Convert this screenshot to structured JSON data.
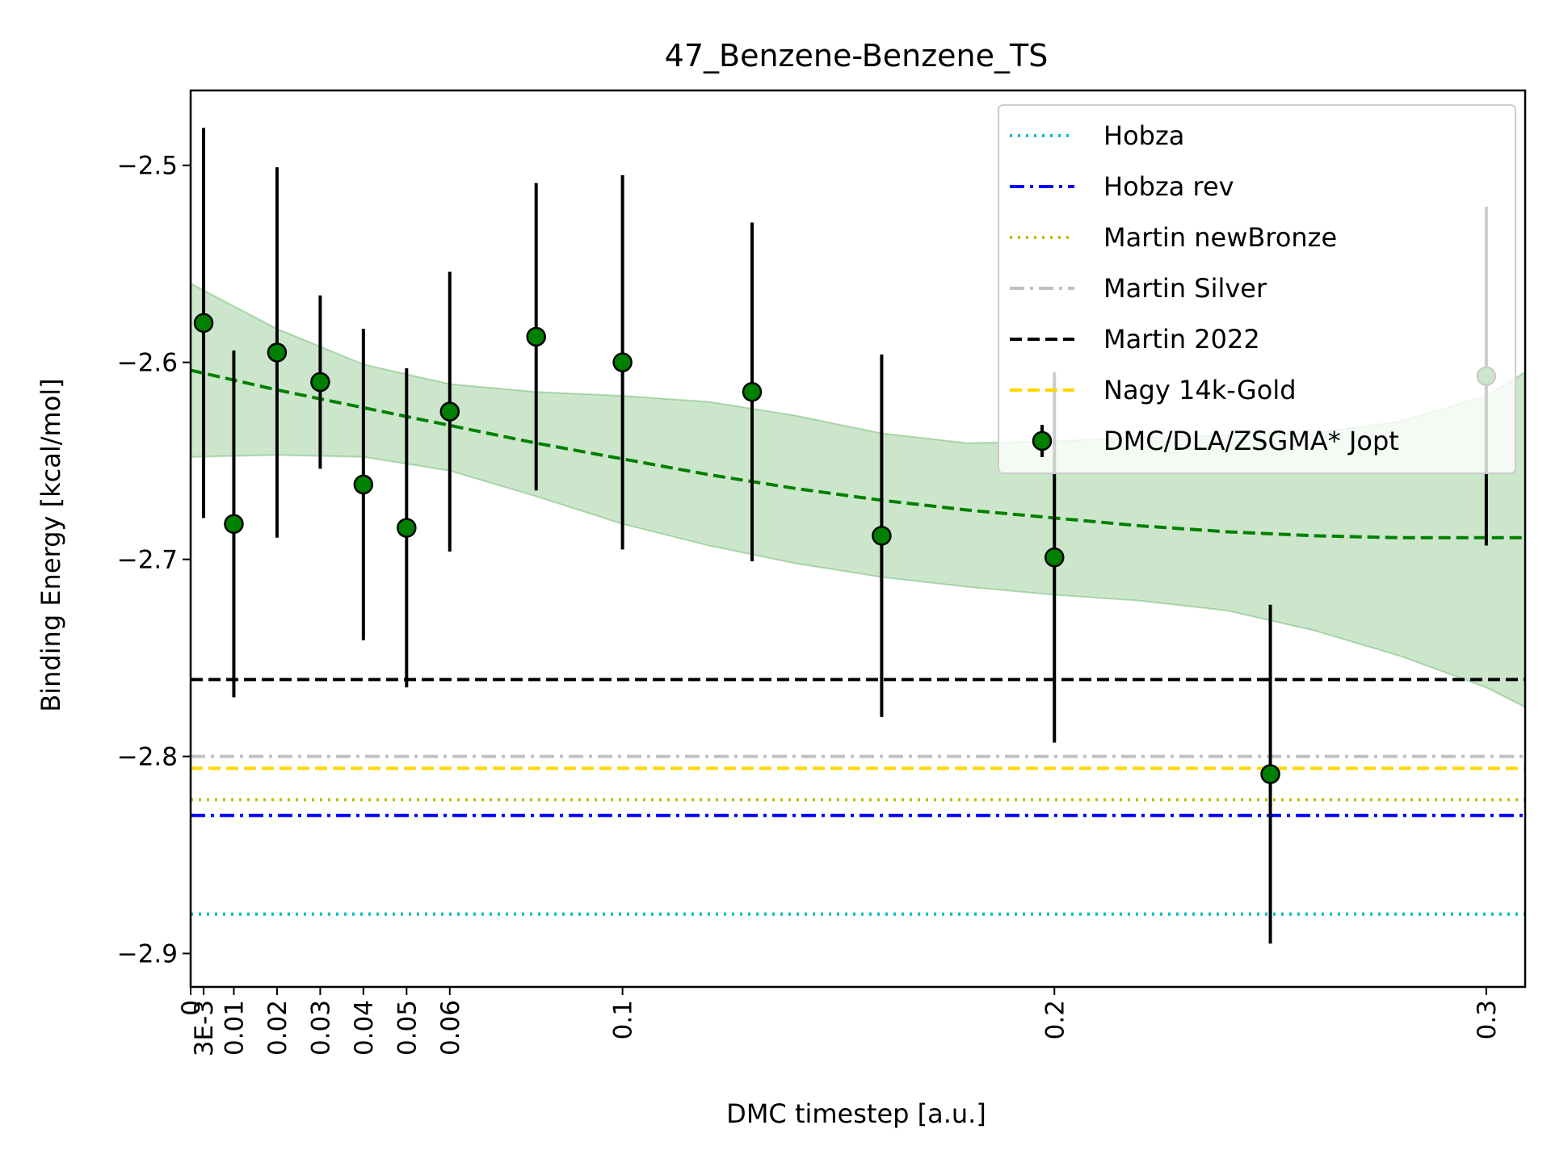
{
  "chart_data": {
    "type": "scatter",
    "title": "47_Benzene-Benzene_TS",
    "xlabel": "DMC timestep [a.u.]",
    "ylabel": "Binding Energy [kcal/mol]",
    "xlim": [
      0,
      0.309
    ],
    "ylim": [
      -2.917,
      -2.462
    ],
    "x_ticks": [
      {
        "value": 0,
        "label": "0"
      },
      {
        "value": 0.003,
        "label": "3E-3"
      },
      {
        "value": 0.01,
        "label": "0.01"
      },
      {
        "value": 0.02,
        "label": "0.02"
      },
      {
        "value": 0.03,
        "label": "0.03"
      },
      {
        "value": 0.04,
        "label": "0.04"
      },
      {
        "value": 0.05,
        "label": "0.05"
      },
      {
        "value": 0.06,
        "label": "0.06"
      },
      {
        "value": 0.1,
        "label": "0.1"
      },
      {
        "value": 0.2,
        "label": "0.2"
      },
      {
        "value": 0.3,
        "label": "0.3"
      }
    ],
    "y_ticks": [
      {
        "value": -2.5,
        "label": "−2.5"
      },
      {
        "value": -2.6,
        "label": "−2.6"
      },
      {
        "value": -2.7,
        "label": "−2.7"
      },
      {
        "value": -2.8,
        "label": "−2.8"
      },
      {
        "value": -2.9,
        "label": "−2.9"
      }
    ],
    "reference_lines": [
      {
        "name": "Hobza",
        "value": -2.88,
        "color": "#00bfbf",
        "style": "dotted"
      },
      {
        "name": "Hobza rev",
        "value": -2.83,
        "color": "#0000ff",
        "style": "dashdot"
      },
      {
        "name": "Martin newBronze",
        "value": -2.822,
        "color": "#bfbf00",
        "style": "dotted"
      },
      {
        "name": "Martin Silver",
        "value": -2.8,
        "color": "#c0c0c0",
        "style": "dashdot"
      },
      {
        "name": "Martin 2022",
        "value": -2.761,
        "color": "#000000",
        "style": "dashed"
      },
      {
        "name": "Nagy 14k-Gold",
        "value": -2.806,
        "color": "#ffd700",
        "style": "dashed"
      }
    ],
    "series": [
      {
        "name": "DMC/DLA/ZSGMA* Jopt",
        "color": "#008000",
        "points": [
          {
            "x": 0.003,
            "y": -2.58,
            "err": 0.099
          },
          {
            "x": 0.01,
            "y": -2.682,
            "err": 0.088
          },
          {
            "x": 0.02,
            "y": -2.595,
            "err": 0.094
          },
          {
            "x": 0.03,
            "y": -2.61,
            "err": 0.044
          },
          {
            "x": 0.04,
            "y": -2.662,
            "err": 0.079
          },
          {
            "x": 0.05,
            "y": -2.684,
            "err": 0.081
          },
          {
            "x": 0.06,
            "y": -2.625,
            "err": 0.071
          },
          {
            "x": 0.08,
            "y": -2.587,
            "err": 0.078
          },
          {
            "x": 0.1,
            "y": -2.6,
            "err": 0.095
          },
          {
            "x": 0.13,
            "y": -2.615,
            "err": 0.086
          },
          {
            "x": 0.16,
            "y": -2.688,
            "err": 0.092
          },
          {
            "x": 0.2,
            "y": -2.699,
            "err": 0.094
          },
          {
            "x": 0.25,
            "y": -2.809,
            "err": 0.086
          },
          {
            "x": 0.3,
            "y": -2.607,
            "err": 0.086
          }
        ]
      }
    ],
    "fit": {
      "color": "#008000",
      "x": [
        0,
        0.02,
        0.04,
        0.06,
        0.08,
        0.1,
        0.12,
        0.14,
        0.16,
        0.18,
        0.2,
        0.22,
        0.24,
        0.26,
        0.28,
        0.3,
        0.309
      ],
      "y": [
        -2.604,
        -2.614,
        -2.623,
        -2.632,
        -2.641,
        -2.649,
        -2.657,
        -2.664,
        -2.67,
        -2.675,
        -2.679,
        -2.683,
        -2.686,
        -2.688,
        -2.689,
        -2.689,
        -2.689
      ],
      "band_upper": [
        -2.56,
        -2.583,
        -2.601,
        -2.611,
        -2.615,
        -2.617,
        -2.62,
        -2.627,
        -2.636,
        -2.641,
        -2.64,
        -2.638,
        -2.637,
        -2.636,
        -2.63,
        -2.617,
        -2.605
      ],
      "band_lower": [
        -2.648,
        -2.647,
        -2.648,
        -2.655,
        -2.668,
        -2.682,
        -2.693,
        -2.702,
        -2.709,
        -2.714,
        -2.718,
        -2.721,
        -2.726,
        -2.736,
        -2.749,
        -2.765,
        -2.775
      ]
    },
    "legend": {
      "placement": "top-right",
      "entries": [
        "Hobza",
        "Hobza rev",
        "Martin newBronze",
        "Martin Silver",
        "Martin 2022",
        "Nagy 14k-Gold",
        "DMC/DLA/ZSGMA* Jopt"
      ]
    },
    "grid": false
  }
}
